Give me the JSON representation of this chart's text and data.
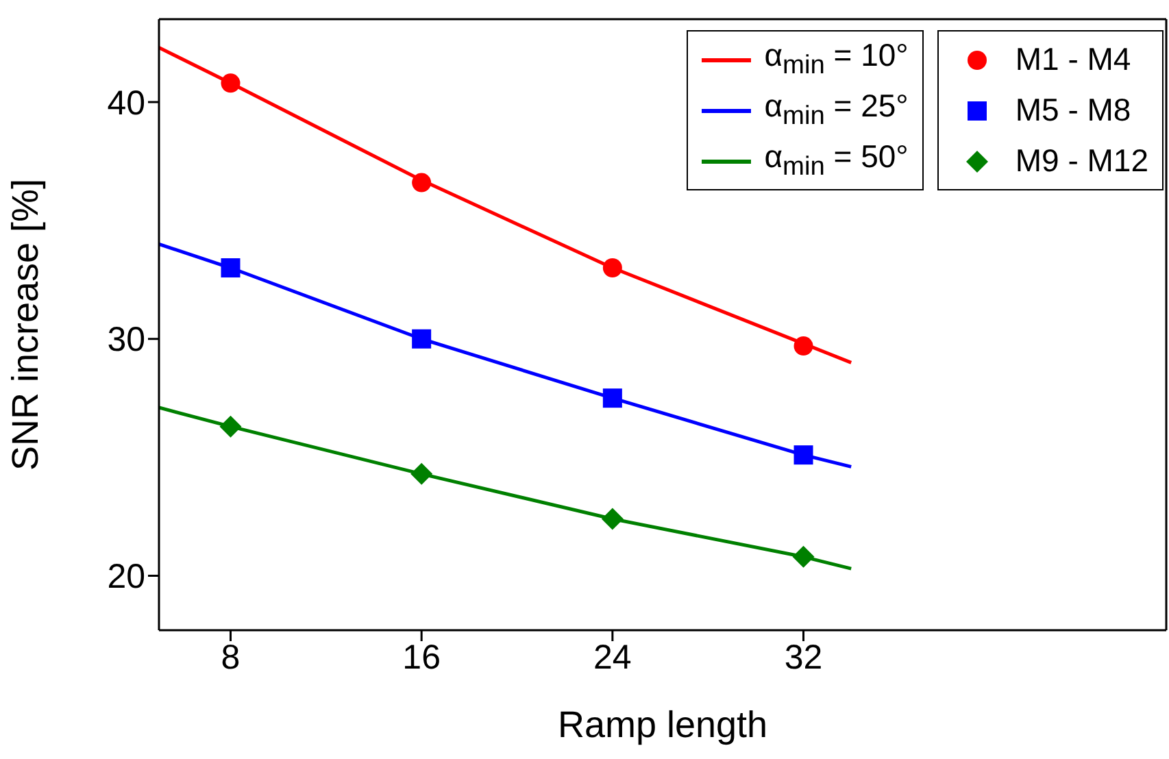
{
  "chart_data": {
    "type": "line",
    "xlabel": "Ramp length",
    "ylabel": "SNR increase [%]",
    "xlim": [
      5,
      47.2
    ],
    "xticks": [
      8,
      16,
      24,
      32
    ],
    "ylim": [
      17.7,
      43.5
    ],
    "yticks": [
      20,
      30,
      40
    ],
    "legend": "top right",
    "series": [
      {
        "name": "α$_{min}$ = 10°",
        "color": "#ff0000",
        "marker": "none",
        "x": [
          5,
          8,
          16,
          24,
          32,
          34
        ],
        "values": [
          42.3,
          40.8,
          36.7,
          33.0,
          29.8,
          29.0
        ]
      },
      {
        "name": "α$_{min}$ = 25°",
        "color": "#0000ff",
        "marker": "none",
        "x": [
          5,
          8,
          16,
          24,
          32,
          34
        ],
        "values": [
          34.0,
          33.0,
          30.0,
          27.5,
          25.1,
          24.6
        ]
      },
      {
        "name": "α$_{min}$ = 50°",
        "color": "#008000",
        "marker": "none",
        "x": [
          5,
          8,
          16,
          24,
          32,
          34
        ],
        "values": [
          27.1,
          26.3,
          24.3,
          22.4,
          20.8,
          20.3
        ]
      },
      {
        "name": "M1 - M4",
        "type": "scatter",
        "color": "#ff0000",
        "marker": "circle",
        "x": [
          8,
          16,
          24,
          32
        ],
        "values": [
          40.8,
          36.6,
          33.0,
          29.7
        ]
      },
      {
        "name": "M5 - M8",
        "type": "scatter",
        "color": "#0000ff",
        "marker": "square",
        "x": [
          8,
          16,
          24,
          32
        ],
        "values": [
          33.0,
          30.0,
          27.5,
          25.1
        ]
      },
      {
        "name": "M9 - M12",
        "type": "scatter",
        "color": "#008000",
        "marker": "diamond",
        "x": [
          8,
          16,
          24,
          32
        ],
        "values": [
          26.3,
          24.3,
          22.4,
          20.8
        ]
      }
    ]
  }
}
